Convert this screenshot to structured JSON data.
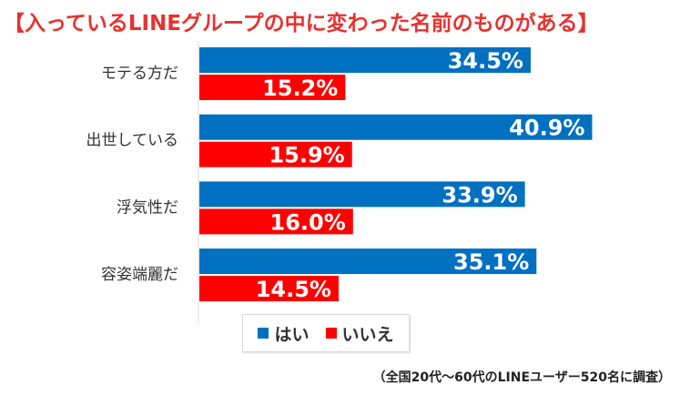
{
  "title": "【入っているLINEグループの中に変わった名前のものがある】",
  "source_note": "（全国20代～60代のLINEユーザー520名に調査）",
  "colors": {
    "yes": "#0070c0",
    "no": "#ff0000"
  },
  "chart_data": {
    "type": "bar",
    "orientation": "horizontal",
    "title": "【入っているLINEグループの中に変わった名前のものがある】",
    "categories": [
      "モテる方だ",
      "出世している",
      "浮気性だ",
      "容姿端麗だ"
    ],
    "series": [
      {
        "name": "はい",
        "values": [
          34.5,
          40.9,
          33.9,
          35.1
        ],
        "labels": [
          "34.5%",
          "40.9%",
          "33.9%",
          "35.1%"
        ]
      },
      {
        "name": "いいえ",
        "values": [
          15.2,
          15.9,
          16.0,
          14.5
        ],
        "labels": [
          "15.2%",
          "15.9%",
          "16.0%",
          "14.5%"
        ]
      }
    ],
    "legend": "bottom",
    "grid": false
  }
}
